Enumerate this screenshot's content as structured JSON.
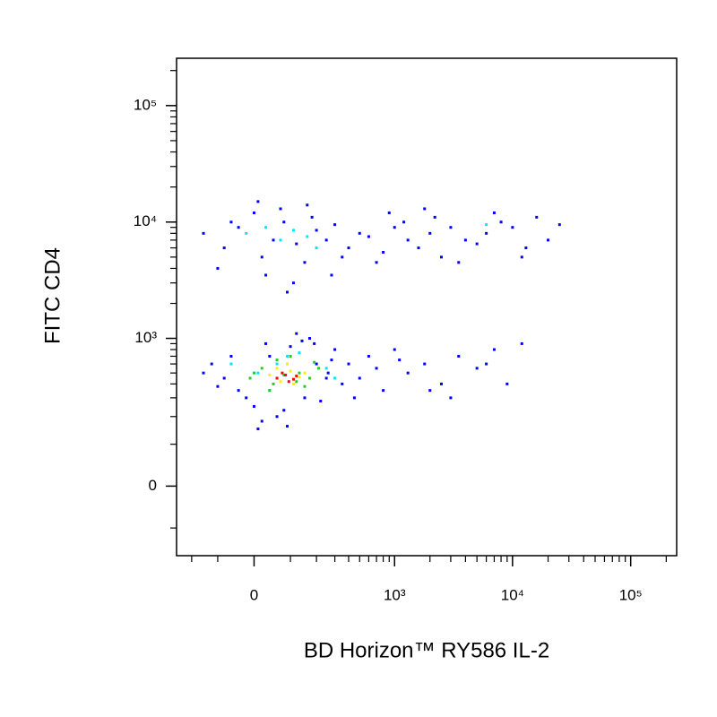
{
  "chart_data": {
    "type": "scatter",
    "xlabel": "BD Horizon™ RY586 IL-2",
    "ylabel": "FITC CD4",
    "xscale": "asinh",
    "xcofactor": 130,
    "yscale": "asinh",
    "ycofactor": 108,
    "xlim": [
      -280,
      245000
    ],
    "ylim": [
      -200,
      255000
    ],
    "xticks": [
      0,
      {
        "value": 1000,
        "label": "10³"
      },
      {
        "value": 10000,
        "label": "10⁴"
      },
      {
        "value": 100000,
        "label": "10⁵"
      }
    ],
    "yticks": [
      0,
      {
        "value": 1000,
        "label": "10³"
      },
      {
        "value": 10000,
        "label": "10⁴"
      },
      {
        "value": 100000,
        "label": "10⁵"
      }
    ],
    "xminorticks": [
      -200,
      -100,
      100,
      200,
      300,
      400,
      500,
      600,
      700,
      800,
      900,
      2000,
      3000,
      4000,
      5000,
      6000,
      7000,
      8000,
      9000,
      20000,
      30000,
      40000,
      50000,
      60000,
      70000,
      80000,
      90000,
      200000
    ],
    "yminorticks": [
      -100,
      100,
      200,
      300,
      400,
      500,
      600,
      700,
      800,
      900,
      2000,
      3000,
      4000,
      5000,
      6000,
      7000,
      8000,
      9000,
      20000,
      30000,
      40000,
      50000,
      60000,
      70000,
      80000,
      90000,
      200000
    ],
    "series": [
      {
        "color": "#0000ff",
        "x": [
          -150,
          -80,
          -40,
          0,
          20,
          50,
          80,
          120,
          150,
          200,
          250,
          300,
          400,
          500,
          600,
          800,
          1000,
          1300,
          1600,
          2000,
          2500,
          3000,
          4000,
          5000,
          6000,
          8000,
          10000,
          13000,
          16000,
          20000,
          -100,
          30,
          70,
          110,
          180,
          350,
          700,
          1200,
          2200,
          3500,
          7000,
          12000,
          25000,
          -60,
          10,
          90,
          160,
          280,
          900,
          1800,
          -150,
          -100,
          -60,
          -20,
          0,
          30,
          60,
          100,
          150,
          200,
          250,
          300,
          350,
          -120,
          -40,
          20,
          80,
          140,
          220,
          280,
          400,
          500,
          600,
          800,
          1000,
          1300,
          1800,
          2500,
          3500,
          5000,
          7000,
          9000,
          12000,
          450,
          700,
          1100,
          2000,
          3000,
          6000,
          -80,
          40,
          120,
          190,
          260,
          10,
          90,
          170
        ],
        "values": [
          8000,
          6000,
          9000,
          12000,
          5000,
          7000,
          10000,
          6500,
          4500,
          8500,
          7000,
          9500,
          6000,
          8000,
          7500,
          5500,
          9000,
          7000,
          6000,
          8000,
          5000,
          9000,
          7000,
          6500,
          8000,
          10000,
          9000,
          6000,
          11000,
          7000,
          4000,
          3500,
          13000,
          3000,
          11000,
          5000,
          4500,
          10000,
          11000,
          4500,
          12000,
          5000,
          9500,
          10000,
          15000,
          2500,
          14000,
          3500,
          12000,
          13000,
          500,
          380,
          700,
          300,
          250,
          900,
          200,
          850,
          300,
          600,
          450,
          800,
          400,
          600,
          350,
          180,
          230,
          950,
          280,
          650,
          600,
          450,
          700,
          350,
          800,
          500,
          600,
          400,
          700,
          550,
          800,
          400,
          900,
          300,
          550,
          650,
          350,
          300,
          600,
          450,
          700,
          1100,
          900,
          500,
          150,
          160,
          1000
        ]
      },
      {
        "color": "#00e5ff",
        "x": [
          -20,
          30,
          70,
          110,
          160,
          200,
          -60,
          250,
          40,
          130,
          6000,
          90,
          300,
          10,
          60
        ],
        "values": [
          8000,
          9000,
          7000,
          8500,
          7500,
          6000,
          600,
          550,
          350,
          750,
          9500,
          700,
          450,
          500,
          600
        ]
      },
      {
        "color": "#22cc22",
        "x": [
          -10,
          20,
          50,
          90,
          130,
          170,
          210,
          40,
          100,
          150,
          0,
          60,
          120,
          190,
          80
        ],
        "values": [
          450,
          550,
          400,
          600,
          500,
          450,
          550,
          350,
          700,
          380,
          500,
          650,
          420,
          620,
          480
        ]
      },
      {
        "color": "#ffee00",
        "x": [
          40,
          70,
          100,
          130,
          60,
          110,
          90,
          150
        ],
        "values": [
          480,
          420,
          520,
          460,
          550,
          400,
          600,
          500
        ]
      },
      {
        "color": "#ff0000",
        "x": [
          60,
          85,
          110,
          75,
          95,
          120
        ],
        "values": [
          450,
          480,
          440,
          500,
          420,
          470
        ]
      }
    ]
  }
}
